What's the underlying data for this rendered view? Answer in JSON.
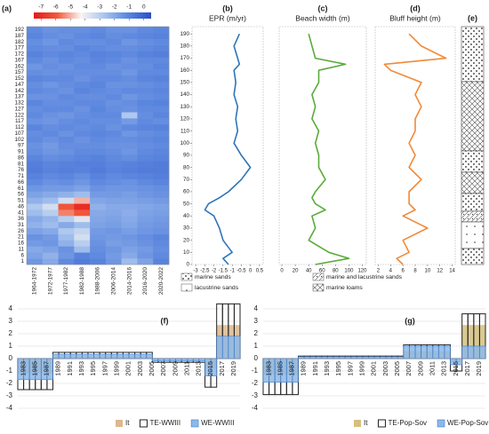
{
  "chart_data": [
    {
      "type": "heatmap",
      "panel_label": "(a)",
      "columns": [
        "1964-1972",
        "1972-1977",
        "1977-1982",
        "1982-1988",
        "1988-2006",
        "2006-2014",
        "2014-2016",
        "2016-2020",
        "2020-2022"
      ],
      "rows": [
        1,
        6,
        11,
        16,
        21,
        26,
        31,
        36,
        41,
        46,
        51,
        56,
        61,
        66,
        71,
        76,
        81,
        86,
        91,
        97,
        102,
        107,
        112,
        117,
        122,
        127,
        132,
        137,
        142,
        147,
        152,
        157,
        162,
        167,
        172,
        177,
        182,
        187,
        192
      ],
      "values": [
        [
          -1.5,
          -2.0,
          -1.2,
          -0.8,
          -1.0,
          -1.5,
          -2.5,
          -1.8,
          -1.0
        ],
        [
          -1.8,
          -2.2,
          -1.5,
          -1.0,
          -1.2,
          -1.6,
          -2.0,
          -1.5,
          -1.2
        ],
        [
          -2.0,
          -1.8,
          -1.4,
          -2.5,
          -1.3,
          -1.5,
          -1.8,
          -1.6,
          -1.3
        ],
        [
          -1.6,
          -1.5,
          -2.2,
          -3.0,
          -1.4,
          -1.7,
          -1.6,
          -1.4,
          -1.2
        ],
        [
          -1.4,
          -1.6,
          -2.5,
          -3.5,
          -1.5,
          -1.6,
          -1.5,
          -1.3,
          -1.1
        ],
        [
          -1.8,
          -2.0,
          -2.8,
          -3.2,
          -1.6,
          -1.5,
          -1.7,
          -1.5,
          -1.4
        ],
        [
          -2.2,
          -2.5,
          -2.0,
          -2.5,
          -1.8,
          -1.7,
          -1.9,
          -1.6,
          -1.5
        ],
        [
          -2.0,
          -2.3,
          -3.0,
          -3.8,
          -1.9,
          -1.8,
          -2.0,
          -1.7,
          -1.6
        ],
        [
          -2.5,
          -3.0,
          -5.5,
          -6.0,
          -2.0,
          -1.9,
          -2.1,
          -1.8,
          -1.7
        ],
        [
          -2.8,
          -3.5,
          -6.0,
          -7.0,
          -2.2,
          -2.0,
          -2.0,
          -1.9,
          -1.8
        ],
        [
          -2.2,
          -2.5,
          -3.5,
          -5.0,
          -1.9,
          -1.8,
          -1.8,
          -1.7,
          -1.6
        ],
        [
          -1.8,
          -2.0,
          -2.2,
          -2.5,
          -1.6,
          -1.6,
          -1.7,
          -1.5,
          -1.4
        ],
        [
          -1.5,
          -1.6,
          -1.6,
          -1.8,
          -1.4,
          -1.5,
          -1.5,
          -1.4,
          -1.3
        ],
        [
          -1.2,
          -1.4,
          -1.3,
          -1.5,
          -1.2,
          -1.3,
          -1.4,
          -1.2,
          -1.1
        ],
        [
          -1.0,
          -1.2,
          -1.1,
          -1.3,
          -1.0,
          -1.2,
          -1.1,
          -1.0,
          -0.9
        ],
        [
          -0.8,
          -1.0,
          -0.9,
          -1.0,
          -0.8,
          -1.0,
          -0.9,
          -0.8,
          -0.8
        ],
        [
          -0.9,
          -1.1,
          -1.0,
          -0.9,
          -0.9,
          -1.1,
          -1.0,
          -0.9,
          -0.8
        ],
        [
          -1.1,
          -1.3,
          -1.2,
          -1.1,
          -1.0,
          -1.2,
          -1.3,
          -1.1,
          -1.0
        ],
        [
          -1.3,
          -1.5,
          -1.4,
          -1.2,
          -1.2,
          -1.3,
          -1.5,
          -1.2,
          -1.1
        ],
        [
          -1.4,
          -1.6,
          -1.3,
          -1.3,
          -1.3,
          -1.4,
          -1.4,
          -1.3,
          -1.2
        ],
        [
          -1.2,
          -1.4,
          -1.2,
          -1.4,
          -1.2,
          -1.3,
          -1.3,
          -1.2,
          -1.1
        ],
        [
          -1.3,
          -1.2,
          -1.4,
          -1.2,
          -1.1,
          -1.2,
          -1.5,
          -1.3,
          -1.2
        ],
        [
          -1.1,
          -1.3,
          -1.2,
          -1.3,
          -1.2,
          -1.4,
          -1.2,
          -1.1,
          -1.0
        ],
        [
          -1.4,
          -1.5,
          -1.3,
          -1.2,
          -1.3,
          -1.3,
          -1.6,
          -1.2,
          -1.3
        ],
        [
          -1.2,
          -1.4,
          -1.5,
          -1.3,
          -1.2,
          -1.2,
          -2.8,
          -1.3,
          -1.1
        ],
        [
          -1.3,
          -1.2,
          -1.2,
          -1.4,
          -1.1,
          -1.3,
          -1.4,
          -1.2,
          -1.2
        ],
        [
          -1.1,
          -1.3,
          -1.3,
          -1.2,
          -1.2,
          -1.4,
          -1.3,
          -1.1,
          -1.0
        ],
        [
          -1.4,
          -1.4,
          -1.2,
          -1.3,
          -1.3,
          -1.2,
          -1.5,
          -1.3,
          -1.2
        ],
        [
          -1.2,
          -1.3,
          -1.4,
          -1.1,
          -1.2,
          -1.3,
          -1.2,
          -1.2,
          -1.1
        ],
        [
          -1.3,
          -1.5,
          -1.3,
          -1.2,
          -1.1,
          -1.4,
          -1.4,
          -1.3,
          -1.2
        ],
        [
          -1.1,
          -1.2,
          -1.2,
          -1.4,
          -1.2,
          -1.2,
          -1.3,
          -1.1,
          -1.0
        ],
        [
          -1.3,
          -1.4,
          -1.3,
          -1.3,
          -1.3,
          -1.3,
          -1.5,
          -1.2,
          -1.2
        ],
        [
          -1.5,
          -1.3,
          -1.4,
          -1.2,
          -1.2,
          -1.4,
          -1.3,
          -1.3,
          -1.1
        ],
        [
          -1.2,
          -1.4,
          -1.2,
          -1.3,
          -1.1,
          -1.2,
          -1.4,
          -1.2,
          -1.2
        ],
        [
          -1.0,
          -1.2,
          -1.1,
          -1.2,
          -1.0,
          -1.1,
          -1.2,
          -1.0,
          -0.9
        ],
        [
          -1.2,
          -1.3,
          -1.3,
          -1.1,
          -1.2,
          -1.3,
          -1.3,
          -1.2,
          -1.1
        ],
        [
          -1.3,
          -1.5,
          -1.2,
          -1.3,
          -1.3,
          -1.2,
          -1.5,
          -1.3,
          -1.2
        ],
        [
          -1.1,
          -1.3,
          -1.4,
          -1.2,
          -1.1,
          -1.3,
          -1.2,
          -1.1,
          -1.0
        ],
        [
          -1.2,
          -1.4,
          -1.3,
          -1.3,
          -1.2,
          -1.4,
          -1.4,
          -1.2,
          -1.1
        ]
      ],
      "zlim": [
        -7.5,
        0.5
      ],
      "colorbar_ticks": [
        -7,
        -6,
        -5,
        -4,
        -3,
        -2,
        -1,
        0
      ],
      "colors": [
        "#e31a1c",
        "#f05a3c",
        "#fbf4f2",
        "#a9c5ee",
        "#5b86de",
        "#2b4fc7"
      ]
    },
    {
      "type": "profile",
      "panel_label": "(b)",
      "title": "EPR (m/yr)",
      "color": "#2e75b6",
      "xlim": [
        -3.2,
        0.7
      ],
      "xticks": [
        -3,
        -2.5,
        -2,
        -1.5,
        -1,
        -0.5,
        0,
        0.5
      ],
      "ylim": [
        0,
        196
      ],
      "yticks": [
        0,
        10,
        20,
        30,
        40,
        50,
        60,
        70,
        80,
        90,
        100,
        110,
        120,
        130,
        140,
        150,
        160,
        170,
        180,
        190
      ],
      "y": [
        0,
        5,
        10,
        20,
        30,
        40,
        45,
        50,
        55,
        60,
        70,
        80,
        90,
        100,
        110,
        120,
        130,
        140,
        150,
        160,
        165,
        170,
        180,
        190
      ],
      "values": [
        -1.2,
        -1.5,
        -1.0,
        -1.5,
        -1.7,
        -2.0,
        -2.5,
        -2.3,
        -1.7,
        -1.2,
        -0.5,
        0.0,
        -0.5,
        -0.9,
        -0.7,
        -0.8,
        -0.7,
        -0.9,
        -0.8,
        -0.9,
        -0.6,
        -0.7,
        -0.9,
        -0.6
      ]
    },
    {
      "type": "profile",
      "panel_label": "(c)",
      "title": "Beach width (m)",
      "color": "#5aab3a",
      "xlim": [
        -4,
        126
      ],
      "xticks": [
        0,
        20,
        40,
        60,
        80,
        100,
        120
      ],
      "ylim": [
        0,
        196
      ],
      "y": [
        0,
        5,
        10,
        20,
        30,
        40,
        45,
        50,
        55,
        60,
        70,
        80,
        90,
        100,
        110,
        120,
        130,
        140,
        150,
        160,
        165,
        170,
        180,
        190
      ],
      "values": [
        50,
        100,
        70,
        40,
        50,
        45,
        65,
        50,
        45,
        50,
        65,
        55,
        55,
        50,
        55,
        45,
        50,
        45,
        55,
        55,
        95,
        50,
        45,
        40
      ]
    },
    {
      "type": "profile",
      "panel_label": "(d)",
      "title": "Bluff height (m)",
      "color": "#f08a3a",
      "xlim": [
        1.5,
        14.5
      ],
      "xticks": [
        2,
        4,
        6,
        8,
        10,
        12,
        14
      ],
      "ylim": [
        0,
        196
      ],
      "y": [
        0,
        5,
        10,
        20,
        30,
        40,
        45,
        50,
        55,
        60,
        70,
        80,
        90,
        100,
        110,
        120,
        130,
        140,
        150,
        160,
        165,
        170,
        180,
        190
      ],
      "values": [
        6,
        5,
        7,
        6,
        10,
        6,
        8,
        7,
        7,
        7,
        9,
        7,
        8,
        7,
        8,
        8,
        9,
        8,
        9,
        4,
        3,
        13,
        9,
        7
      ]
    },
    {
      "type": "lithology",
      "panel_label": "(e)",
      "labels": [
        "marine sands",
        "marine and lacustrine sands",
        "lacustrine sands",
        "marine loams"
      ]
    },
    {
      "type": "bars",
      "panel_label": "(f)",
      "categories": [
        1983,
        null,
        1985,
        null,
        1987,
        null,
        1989,
        null,
        1991,
        null,
        1993,
        null,
        1995,
        null,
        1997,
        null,
        1999,
        null,
        2001,
        null,
        2003,
        null,
        2005,
        null,
        2007,
        null,
        2009,
        null,
        2011,
        null,
        2013,
        null,
        2015,
        null,
        2017,
        null,
        2019,
        null
      ],
      "ylim": [
        -4,
        4
      ],
      "yticks": [
        -4,
        -3,
        -2,
        -1,
        0,
        1,
        2,
        3,
        4
      ],
      "grid": true,
      "series": [
        {
          "name": "It",
          "color": "#dcb88e",
          "outline": false,
          "values": [
            -1.2,
            -1.2,
            -1.2,
            -1.2,
            -1.2,
            -1.2,
            0.2,
            0.2,
            0.2,
            0.2,
            0.2,
            0.2,
            0.2,
            0.2,
            0.2,
            0.2,
            0.2,
            0.2,
            0.2,
            0.2,
            0.2,
            0.2,
            0.2,
            -0.1,
            -0.1,
            -0.1,
            -0.1,
            -0.1,
            -0.1,
            -0.1,
            -0.1,
            -0.1,
            -0.8,
            -0.8,
            2.7,
            2.7,
            2.7,
            2.7
          ]
        },
        {
          "name": "TE-WWIII",
          "color": "#222222",
          "outline": true,
          "values": [
            -2.5,
            -2.5,
            -2.5,
            -2.5,
            -2.5,
            -2.5,
            0.5,
            0.5,
            0.5,
            0.5,
            0.5,
            0.5,
            0.5,
            0.5,
            0.5,
            0.5,
            0.5,
            0.5,
            0.5,
            0.5,
            0.5,
            0.5,
            0.5,
            -0.3,
            -0.3,
            -0.3,
            -0.3,
            -0.3,
            -0.3,
            -0.3,
            -0.3,
            -0.3,
            -2.3,
            -2.3,
            4.4,
            4.4,
            4.4,
            4.4
          ]
        },
        {
          "name": "WE-WWIII",
          "color": "#8db8e8",
          "outline": false,
          "values": [
            -1.7,
            -1.7,
            -1.7,
            -1.7,
            -1.7,
            -1.7,
            0.35,
            0.35,
            0.35,
            0.35,
            0.35,
            0.35,
            0.35,
            0.35,
            0.35,
            0.35,
            0.35,
            0.35,
            0.35,
            0.35,
            0.35,
            0.35,
            0.35,
            -0.2,
            -0.2,
            -0.2,
            -0.2,
            -0.2,
            -0.2,
            -0.2,
            -0.2,
            -0.2,
            -1.4,
            -1.4,
            1.8,
            1.8,
            1.8,
            1.8
          ]
        }
      ]
    },
    {
      "type": "bars",
      "panel_label": "(g)",
      "categories": [
        1983,
        null,
        1985,
        null,
        1987,
        null,
        1989,
        null,
        1991,
        null,
        1993,
        null,
        1995,
        null,
        1997,
        null,
        1999,
        null,
        2001,
        null,
        2003,
        null,
        2005,
        null,
        2007,
        null,
        2009,
        null,
        2011,
        null,
        2013,
        null,
        2015,
        null,
        2017,
        null,
        2019,
        null
      ],
      "ylim": [
        -4,
        4
      ],
      "yticks": [
        -4,
        -3,
        -2,
        -1,
        0,
        1,
        2,
        3,
        4
      ],
      "grid": true,
      "series": [
        {
          "name": "It",
          "color": "#d4c07e",
          "outline": false,
          "values": [
            -1.3,
            -1.3,
            -1.3,
            -1.3,
            -1.3,
            -1.3,
            0.1,
            0.1,
            0.1,
            0.1,
            0.1,
            0.1,
            0.1,
            0.1,
            0.1,
            0.1,
            0.1,
            0.1,
            0.1,
            0.1,
            0.1,
            0.1,
            0.1,
            0.1,
            0.6,
            0.6,
            0.6,
            0.6,
            0.6,
            0.6,
            0.6,
            0.6,
            -0.3,
            -0.3,
            2.7,
            2.7,
            2.7,
            2.7
          ]
        },
        {
          "name": "TE-Pop-Sov",
          "color": "#222222",
          "outline": true,
          "values": [
            -2.9,
            -2.9,
            -2.9,
            -2.9,
            -2.9,
            -2.9,
            0.2,
            0.2,
            0.2,
            0.2,
            0.2,
            0.2,
            0.2,
            0.2,
            0.2,
            0.2,
            0.2,
            0.2,
            0.2,
            0.2,
            0.2,
            0.2,
            0.2,
            0.2,
            1.1,
            1.1,
            1.1,
            1.1,
            1.1,
            1.1,
            1.1,
            1.1,
            -1.0,
            -1.0,
            3.6,
            3.6,
            3.6,
            3.6
          ]
        },
        {
          "name": "WE-Pop-Sov",
          "color": "#8db8e8",
          "outline": false,
          "values": [
            -1.9,
            -1.9,
            -1.9,
            -1.9,
            -1.9,
            -1.9,
            0.15,
            0.15,
            0.15,
            0.15,
            0.15,
            0.15,
            0.15,
            0.15,
            0.15,
            0.15,
            0.15,
            0.15,
            0.15,
            0.15,
            0.15,
            0.15,
            0.15,
            0.15,
            1.0,
            1.0,
            1.0,
            1.0,
            1.0,
            1.0,
            1.0,
            1.0,
            -0.5,
            -0.5,
            1.0,
            1.0,
            1.0,
            1.0
          ]
        }
      ]
    }
  ]
}
